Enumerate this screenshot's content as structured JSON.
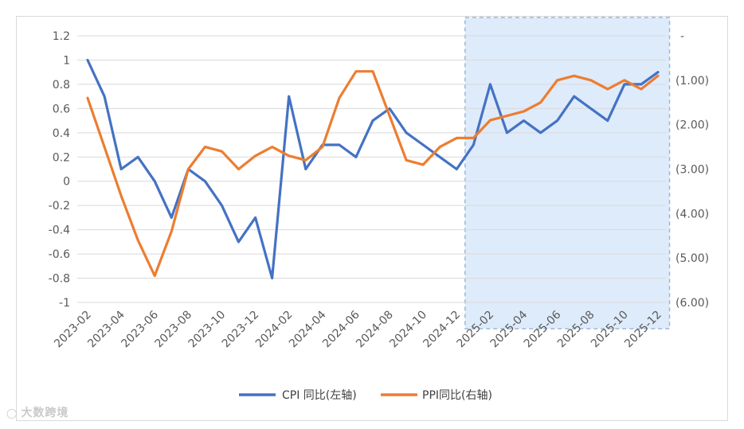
{
  "chart_data": {
    "type": "line",
    "x": [
      "2023-02",
      "2023-03",
      "2023-04",
      "2023-05",
      "2023-06",
      "2023-07",
      "2023-08",
      "2023-09",
      "2023-10",
      "2023-11",
      "2023-12",
      "2024-01",
      "2024-02",
      "2024-03",
      "2024-04",
      "2024-05",
      "2024-06",
      "2024-07",
      "2024-08",
      "2024-09",
      "2024-10",
      "2024-11",
      "2024-12",
      "2025-01",
      "2025-02",
      "2025-03",
      "2025-04",
      "2025-05",
      "2025-06",
      "2025-07",
      "2025-08",
      "2025-09",
      "2025-10",
      "2025-11",
      "2025-12"
    ],
    "x_tick_labels": [
      "2023-02",
      "2023-04",
      "2023-06",
      "2023-08",
      "2023-10",
      "2023-12",
      "2024-02",
      "2024-04",
      "2024-06",
      "2024-08",
      "2024-10",
      "2024-12",
      "2025-02",
      "2025-04",
      "2025-06",
      "2025-08",
      "2025-10",
      "2025-12"
    ],
    "series": [
      {
        "name": "CPI 同比(左轴)",
        "axis": "left",
        "color": "#4472c4",
        "values": [
          1.0,
          0.7,
          0.1,
          0.2,
          0.0,
          -0.3,
          0.1,
          0.0,
          -0.2,
          -0.5,
          -0.3,
          -0.8,
          0.7,
          0.1,
          0.3,
          0.3,
          0.2,
          0.5,
          0.6,
          0.4,
          0.3,
          0.2,
          0.1,
          0.3,
          0.8,
          0.4,
          0.5,
          0.4,
          0.5,
          0.7,
          0.6,
          0.5,
          0.8,
          0.8,
          0.9
        ]
      },
      {
        "name": "PPI同比(右轴)",
        "axis": "right",
        "color": "#ed7d31",
        "values": [
          -1.4,
          -2.5,
          -3.6,
          -4.6,
          -5.4,
          -4.4,
          -3.0,
          -2.5,
          -2.6,
          -3.0,
          -2.7,
          -2.5,
          -2.7,
          -2.8,
          -2.5,
          -1.4,
          -0.8,
          -0.8,
          -1.8,
          -2.8,
          -2.9,
          -2.5,
          -2.3,
          -2.3,
          -1.9,
          -1.8,
          -1.7,
          -1.5,
          -1.0,
          -0.9,
          -1.0,
          -1.2,
          -1.0,
          -1.2,
          -0.9
        ]
      }
    ],
    "left_axis": {
      "ylim": [
        -1.0,
        1.2
      ],
      "ticks": [
        1.2,
        1,
        0.8,
        0.6,
        0.4,
        0.2,
        0,
        -0.2,
        -0.4,
        -0.6,
        -0.8,
        -1
      ],
      "tick_labels": [
        "1.2",
        "1",
        "0.8",
        "0.6",
        "0.4",
        "0.2",
        "0",
        "-0.2",
        "-0.4",
        "-0.6",
        "-0.8",
        "-1"
      ]
    },
    "right_axis": {
      "ylim": [
        -6.0,
        0.0
      ],
      "ticks": [
        0,
        -1,
        -2,
        -3,
        -4,
        -5,
        -6
      ],
      "tick_labels": [
        "-",
        "(1.00)",
        "(2.00)",
        "(3.00)",
        "(4.00)",
        "(5.00)",
        "(6.00)"
      ]
    },
    "highlight_region": {
      "from": "2025-01",
      "to": "2025-12",
      "color": "#deebfa",
      "border": "dashed"
    },
    "grid": true,
    "legend_position": "bottom-center",
    "title": "",
    "xlabel": "",
    "ylabel": ""
  },
  "watermark": {
    "text": "大数跨境",
    "icon": "logo-icon"
  }
}
